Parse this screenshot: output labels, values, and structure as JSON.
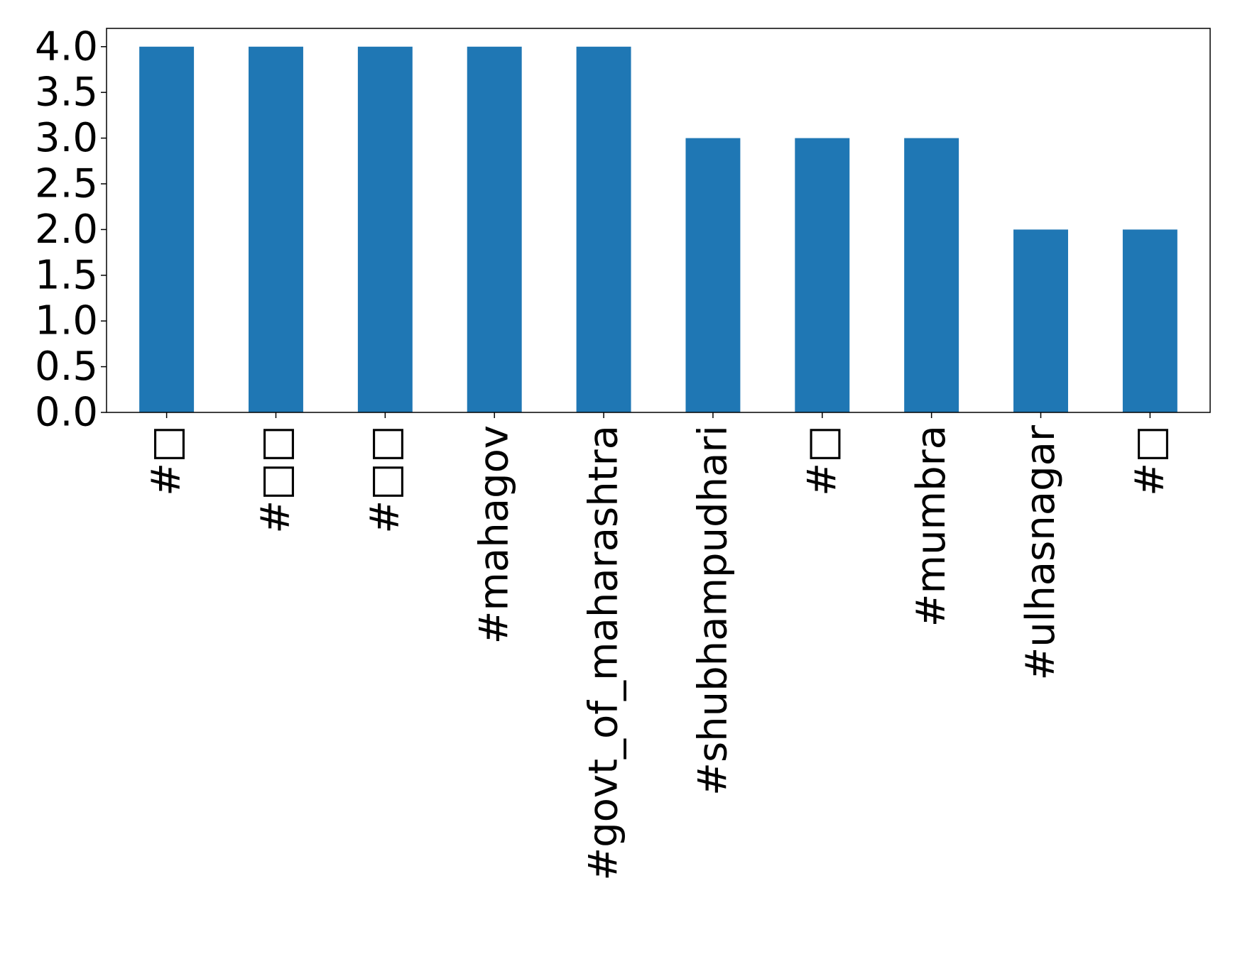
{
  "chart_data": {
    "type": "bar",
    "categories": [
      "#□",
      "#□□",
      "#□□",
      "#mahagov",
      "#govt_of_maharashtra",
      "#shubhampudhari",
      "#□",
      "#mumbra",
      "#ulhasnagar",
      "#□"
    ],
    "values": [
      4,
      4,
      4,
      4,
      4,
      3,
      3,
      3,
      2,
      2
    ],
    "ylim": [
      0,
      4.2
    ],
    "yticks": [
      "0.0",
      "0.5",
      "1.0",
      "1.5",
      "2.0",
      "2.5",
      "3.0",
      "3.5",
      "4.0"
    ],
    "title": "",
    "xlabel": "",
    "ylabel": "",
    "grid": false,
    "bar_color": "#1f77b4"
  }
}
